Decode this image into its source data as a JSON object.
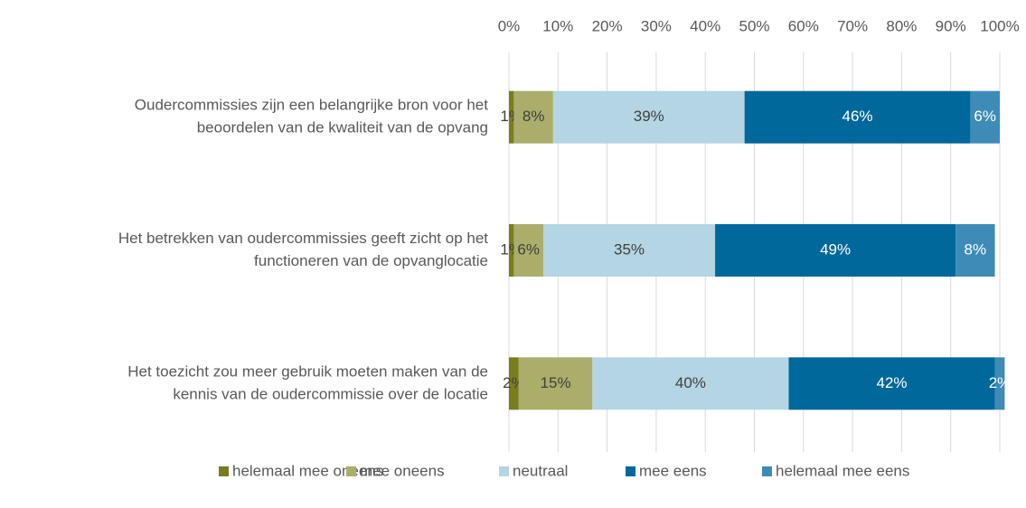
{
  "chart_data": {
    "type": "stacked_bar_horizontal",
    "categories": [
      [
        "Oudercommissies zijn een belangrijke bron voor het",
        "beoordelen van de kwaliteit van de opvang"
      ],
      [
        "Het betrekken van oudercommissies geeft zicht op het",
        "functioneren van de opvanglocatie"
      ],
      [
        "Het toezicht zou meer gebruik moeten maken van de",
        "kennis van de oudercommissie over de locatie"
      ]
    ],
    "series": [
      {
        "name": "helemaal mee oneens",
        "color": "#7a7d1e",
        "label_color": "#404040",
        "values": [
          1,
          1,
          2
        ],
        "value_labels": [
          "1%",
          "1%",
          "2%"
        ]
      },
      {
        "name": "mee oneens",
        "color": "#aaae6a",
        "label_color": "#404040",
        "values": [
          8,
          6,
          15
        ],
        "value_labels": [
          "8%",
          "6%",
          "15%"
        ]
      },
      {
        "name": "neutraal",
        "color": "#b4d5e3",
        "label_color": "#404040",
        "values": [
          39,
          35,
          40
        ],
        "value_labels": [
          "39%",
          "35%",
          "40%"
        ]
      },
      {
        "name": "mee eens",
        "color": "#00689a",
        "label_color": "#ffffff",
        "values": [
          46,
          49,
          42
        ],
        "value_labels": [
          "46%",
          "49%",
          "42%"
        ]
      },
      {
        "name": "helemaal mee eens",
        "color": "#3e8bb8",
        "label_color": "#ffffff",
        "values": [
          6,
          8,
          2
        ],
        "value_labels": [
          "6%",
          "8%",
          "2%"
        ]
      }
    ],
    "xlim": [
      0,
      100
    ],
    "xticks": [
      {
        "value": 0,
        "label": "0%"
      },
      {
        "value": 10,
        "label": "10%"
      },
      {
        "value": 20,
        "label": "20%"
      },
      {
        "value": 30,
        "label": "30%"
      },
      {
        "value": 40,
        "label": "40%"
      },
      {
        "value": 50,
        "label": "50%"
      },
      {
        "value": 60,
        "label": "60%"
      },
      {
        "value": 70,
        "label": "70%"
      },
      {
        "value": 80,
        "label": "80%"
      },
      {
        "value": 90,
        "label": "90%"
      },
      {
        "value": 100,
        "label": "100%"
      }
    ],
    "grid": true,
    "legend": "bottom"
  }
}
